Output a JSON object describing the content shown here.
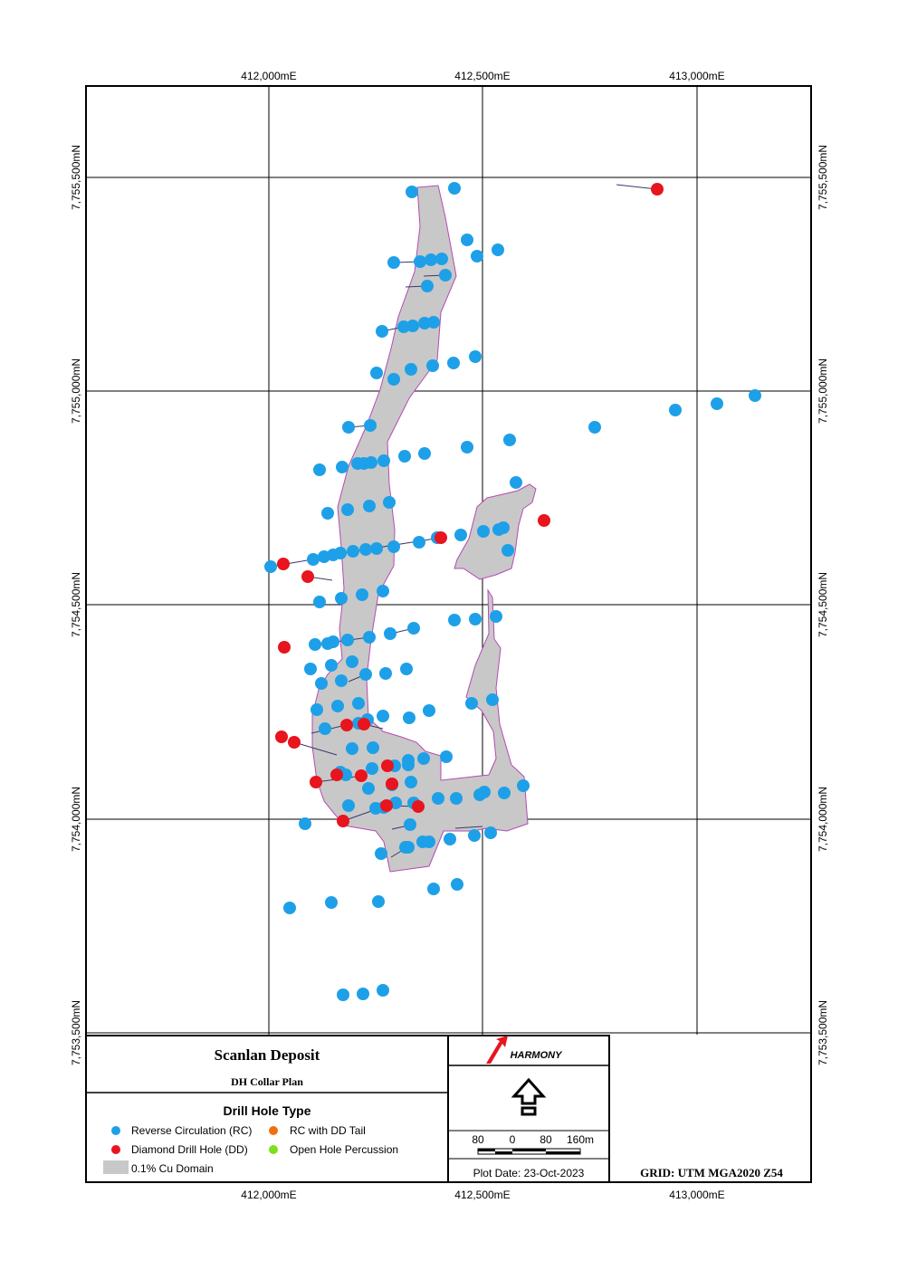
{
  "map": {
    "eastings": [
      "412,000mE",
      "412,500mE",
      "413,000mE"
    ],
    "northings": [
      "7,755,500mN",
      "7,755,000mN",
      "7,754,500mN",
      "7,754,000mN",
      "7,753,500mN"
    ]
  },
  "title_block": {
    "title": "Scanlan Deposit",
    "subtitle": "DH Collar Plan",
    "legend_heading": "Drill Hole Type",
    "legend": [
      {
        "label": "Reverse Circulation (RC)",
        "color": "#1ea0e8"
      },
      {
        "label": "RC with DD Tail",
        "color": "#f07010"
      },
      {
        "label": "Diamond Drill Hole (DD)",
        "color": "#e8141e"
      },
      {
        "label": "Open Hole Percussion",
        "color": "#7de01a"
      },
      {
        "label": "0.1% Cu Domain",
        "color": "#c8c8c8"
      }
    ],
    "logo_text": "HARMONY",
    "scale_labels": [
      "80",
      "0",
      "80",
      "160m"
    ],
    "plot_date": "Plot Date: 23-Oct-2023",
    "grid": "GRID: UTM MGA2020 Z54"
  },
  "colors": {
    "rc": "#1ea0e8",
    "dd": "#e8141e",
    "domain_fill": "#c8c8c8",
    "domain_edge": "#b44ab4",
    "logo": "#e8141e"
  }
}
